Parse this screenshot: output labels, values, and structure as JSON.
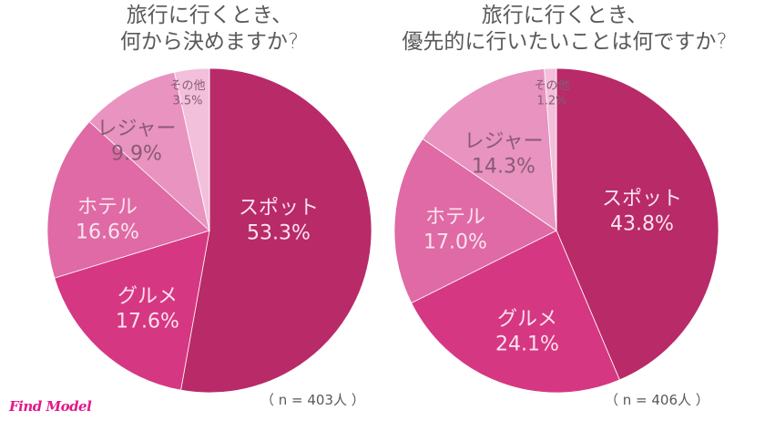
{
  "chart_data": [
    {
      "type": "pie",
      "title": "旅行に行くとき、\n何から決めますか?",
      "title_lines": [
        "旅行に行くとき、",
        "何から決めますか?"
      ],
      "note": "（ n = 403人 ）",
      "slices": [
        {
          "label": "スポット",
          "value": 53.3,
          "value_label": "53.3%",
          "color": "#b82a68",
          "text_color": "#fbe3ee"
        },
        {
          "label": "グルメ",
          "value": 17.6,
          "value_label": "17.6%",
          "color": "#d63782",
          "text_color": "#fbe3ee"
        },
        {
          "label": "ホテル",
          "value": 16.6,
          "value_label": "16.6%",
          "color": "#df6aa5",
          "text_color": "#fbe3ee"
        },
        {
          "label": "レジャー",
          "value": 9.9,
          "value_label": "9.9%",
          "color": "#e893c0",
          "text_color": "#8a5a75"
        },
        {
          "label": "その他",
          "value": 3.5,
          "value_label": "3.5%",
          "color": "#f2c0db",
          "text_color": "#8a5a75"
        }
      ]
    },
    {
      "type": "pie",
      "title": "旅行に行くとき、\n優先的に行いたいことは何ですか?",
      "title_lines": [
        "旅行に行くとき、",
        "優先的に行いたいことは何ですか?"
      ],
      "note": "（ n = 406人 ）",
      "slices": [
        {
          "label": "スポット",
          "value": 43.8,
          "value_label": "43.8%",
          "color": "#b82a68",
          "text_color": "#fbe3ee"
        },
        {
          "label": "グルメ",
          "value": 24.1,
          "value_label": "24.1%",
          "color": "#d63782",
          "text_color": "#fbe3ee"
        },
        {
          "label": "ホテル",
          "value": 17.0,
          "value_label": "17.0%",
          "color": "#df6aa5",
          "text_color": "#fbe3ee"
        },
        {
          "label": "レジャー",
          "value": 14.3,
          "value_label": "14.3%",
          "color": "#e893c0",
          "text_color": "#8a5a75"
        },
        {
          "label": "その他",
          "value": 1.2,
          "value_label": "1.2%",
          "color": "#f2c0db",
          "text_color": "#8a5a75"
        }
      ]
    }
  ],
  "logo": "Find Model"
}
